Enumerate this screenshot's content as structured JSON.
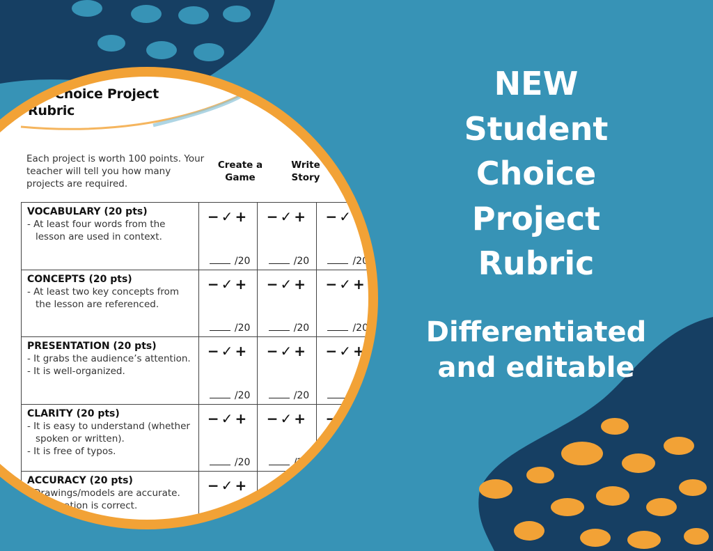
{
  "colors": {
    "background": "#3793b6",
    "navy": "#163f63",
    "orange": "#f2a236"
  },
  "promo": {
    "headline": [
      "NEW",
      "Student",
      "Choice",
      "Project",
      "Rubric"
    ],
    "subhead": [
      "Differentiated",
      "and editable"
    ]
  },
  "rubric": {
    "title_line1": "tudent Choice Project",
    "title_line2": "Rubric",
    "intro": "Each project is worth 100 points. Your teacher will tell you how many projects are required.",
    "columns": [
      [
        "Create a",
        "Game"
      ],
      [
        "Write",
        "Story"
      ]
    ],
    "marks": "−✓+",
    "score_label": "/20",
    "criteria": [
      {
        "name": "VOCABULARY (20 pts)",
        "lines": [
          "- At least four words from the lesson are used in context."
        ]
      },
      {
        "name": "CONCEPTS (20 pts)",
        "lines": [
          "- At least two key concepts from the lesson are referenced."
        ]
      },
      {
        "name": "PRESENTATION (20 pts)",
        "lines": [
          "- It grabs the audience’s attention.",
          "- It is well-organized."
        ]
      },
      {
        "name": "CLARITY (20 pts)",
        "lines": [
          "- It is easy to understand (whether spoken or written).",
          "- It is free of typos."
        ]
      },
      {
        "name": "ACCURACY (20 pts)",
        "lines": [
          "- Drawings/models are accurate.",
          "- Information is correct."
        ]
      }
    ]
  }
}
